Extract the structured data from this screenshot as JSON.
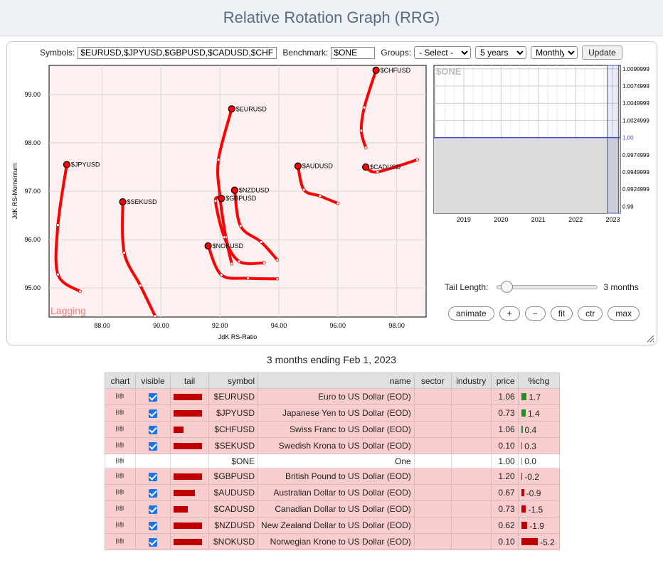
{
  "page": {
    "title": "Relative Rotation Graph (RRG)"
  },
  "controls": {
    "symbols_label": "Symbols:",
    "symbols_value": "$EURUSD,$JPYUSD,$GBPUSD,$CADUSD,$CHFUSD",
    "benchmark_label": "Benchmark:",
    "benchmark_value": "$ONE",
    "groups_label": "Groups:",
    "groups_value": "- Select -",
    "range_value": "5 years",
    "interval_value": "Monthly",
    "update_label": "Update"
  },
  "chart_data": [
    {
      "type": "scatter",
      "title": "",
      "xlabel": "JdK RS-Ratio",
      "ylabel": "JdK RS-Momentum",
      "xlim": [
        86.2,
        99.0
      ],
      "ylim": [
        94.4,
        99.6
      ],
      "xticks": [
        "88.00",
        "90.00",
        "92.00",
        "94.00",
        "96.00",
        "98.00"
      ],
      "xtick_values": [
        88,
        90,
        92,
        94,
        96,
        98
      ],
      "yticks": [
        "99.00",
        "98.00",
        "97.00",
        "96.00",
        "95.00"
      ],
      "ytick_values": [
        99,
        98,
        97,
        96,
        95
      ],
      "quadrant_label": "Lagging",
      "grid": true,
      "series": [
        {
          "name": "$CHFUSD",
          "points": [
            [
              96.95,
              97.9
            ],
            [
              96.8,
              98.25
            ],
            [
              96.9,
              98.73
            ],
            [
              97.3,
              99.5
            ]
          ]
        },
        {
          "name": "$EURUSD",
          "points": [
            [
              92.4,
              95.5
            ],
            [
              92.2,
              96.05
            ],
            [
              92.0,
              96.9
            ],
            [
              91.95,
              97.65
            ],
            [
              92.4,
              98.7
            ]
          ]
        },
        {
          "name": "$JPYUSD",
          "points": [
            [
              87.25,
              94.93
            ],
            [
              86.5,
              95.28
            ],
            [
              86.5,
              96.3
            ],
            [
              86.8,
              97.55
            ]
          ]
        },
        {
          "name": "$AUDUSD",
          "points": [
            [
              96.0,
              96.75
            ],
            [
              95.4,
              96.9
            ],
            [
              94.85,
              97.03
            ],
            [
              94.65,
              97.52
            ]
          ]
        },
        {
          "name": "$CADUSD",
          "points": [
            [
              98.7,
              97.65
            ],
            [
              97.35,
              97.4
            ],
            [
              96.95,
              97.5
            ]
          ]
        },
        {
          "name": "$NZDUSD",
          "points": [
            [
              93.95,
              95.58
            ],
            [
              93.4,
              95.95
            ],
            [
              92.7,
              96.28
            ],
            [
              92.5,
              97.02
            ]
          ]
        },
        {
          "name": "$GBPUSD",
          "points": [
            [
              93.5,
              95.52
            ],
            [
              92.65,
              95.55
            ],
            [
              92.15,
              96.05
            ],
            [
              91.85,
              96.8
            ],
            [
              92.05,
              96.85
            ]
          ]
        },
        {
          "name": "$SEKUSD",
          "points": [
            [
              89.8,
              94.42
            ],
            [
              89.3,
              95.05
            ],
            [
              88.75,
              95.73
            ],
            [
              88.7,
              96.78
            ]
          ]
        },
        {
          "name": "$NOKUSD",
          "points": [
            [
              93.95,
              95.19
            ],
            [
              92.95,
              95.2
            ],
            [
              92.05,
              95.27
            ],
            [
              91.6,
              95.87
            ]
          ]
        }
      ]
    },
    {
      "type": "line",
      "title": "$ONE",
      "x_categories": [
        "2019",
        "2020",
        "2021",
        "2022",
        "2023"
      ],
      "ytick_labels": [
        "1.0099999",
        "1.0074999",
        "1.0049999",
        "1.0024999",
        "1.00",
        "0.9974999",
        "0.9949999",
        "0.9924999",
        "0.99"
      ],
      "ytick_values": [
        1.01,
        1.0075,
        1.005,
        1.0025,
        1.0,
        0.9975,
        0.995,
        0.9925,
        0.99
      ],
      "ylim": [
        0.989,
        1.0105
      ],
      "xlim": [
        2018.2,
        2023.2
      ],
      "highlight_range": [
        2022.85,
        2023.15
      ],
      "series": [
        {
          "values": [
            1.0,
            1.0,
            1.0,
            1.0,
            1.0
          ]
        }
      ]
    }
  ],
  "tail": {
    "label": "Tail Length:",
    "value": "3 months",
    "fraction": 0.08
  },
  "buttons": {
    "animate": "animate",
    "plus": "+",
    "minus": "−",
    "fit": "fit",
    "ctr": "ctr",
    "max": "max"
  },
  "period_text": "3 months ending Feb 1, 2023",
  "table": {
    "headers": [
      "chart",
      "visible",
      "tail",
      "symbol",
      "name",
      "sector",
      "industry",
      "price",
      "%chg"
    ],
    "rows": [
      {
        "symbol": "$EURUSD",
        "name": "Euro to US Dollar (EOD)",
        "price": "1.06",
        "chg": "1.7",
        "visible": true,
        "tail": 1.0
      },
      {
        "symbol": "$JPYUSD",
        "name": "Japanese Yen to US Dollar (EOD)",
        "price": "0.73",
        "chg": "1.4",
        "visible": true,
        "tail": 1.0
      },
      {
        "symbol": "$CHFUSD",
        "name": "Swiss Franc to US Dollar (EOD)",
        "price": "1.06",
        "chg": "0.4",
        "visible": true,
        "tail": 0.35
      },
      {
        "symbol": "$SEKUSD",
        "name": "Swedish Krona to US Dollar (EOD)",
        "price": "0.10",
        "chg": "0.3",
        "visible": true,
        "tail": 1.0
      },
      {
        "symbol": "$ONE",
        "name": "One",
        "price": "1.00",
        "chg": "0.0",
        "visible": false,
        "tail": 0
      },
      {
        "symbol": "$GBPUSD",
        "name": "British Pound to US Dollar (EOD)",
        "price": "1.20",
        "chg": "-0.2",
        "visible": true,
        "tail": 1.0
      },
      {
        "symbol": "$AUDUSD",
        "name": "Australian Dollar to US Dollar (EOD)",
        "price": "0.67",
        "chg": "-0.9",
        "visible": true,
        "tail": 0.75
      },
      {
        "symbol": "$CADUSD",
        "name": "Canadian Dollar to US Dollar (EOD)",
        "price": "0.73",
        "chg": "-1.5",
        "visible": true,
        "tail": 0.5
      },
      {
        "symbol": "$NZDUSD",
        "name": "New Zealand Dollar to US Dollar (EOD)",
        "price": "0.62",
        "chg": "-1.9",
        "visible": true,
        "tail": 1.0
      },
      {
        "symbol": "$NOKUSD",
        "name": "Norwegian Krone to US Dollar (EOD)",
        "price": "0.10",
        "chg": "-5.2",
        "visible": true,
        "tail": 1.0
      }
    ]
  },
  "colors": {
    "tail": "#ff0000",
    "lagging_bg": "#fdf0f0",
    "up": "#1f8f1f",
    "down": "#c00000",
    "row_hl": "#f9cdcd"
  }
}
